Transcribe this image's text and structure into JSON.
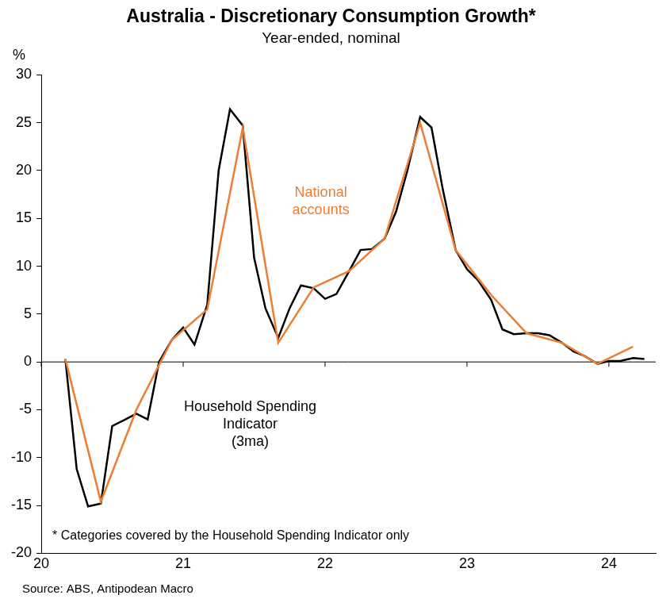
{
  "chart_data": {
    "type": "line",
    "title": "Australia - Discretionary Consumption Growth*",
    "subtitle": "Year-ended, nominal",
    "y_label": "%",
    "footnote": "* Categories covered by the Household Spending Indicator only",
    "source": "Source: ABS, Antipodean Macro",
    "xlim": [
      20,
      24.33
    ],
    "xticks": [
      20,
      21,
      22,
      23,
      24
    ],
    "ylim": [
      -20,
      30
    ],
    "yticks": [
      -20,
      -15,
      -10,
      -5,
      0,
      5,
      10,
      15,
      20,
      25,
      30
    ],
    "grid": false,
    "series": [
      {
        "name": "National accounts",
        "color": "#ED7D31",
        "x": [
          20.17,
          20.42,
          20.67,
          20.92,
          21.17,
          21.42,
          21.67,
          21.92,
          22.17,
          22.42,
          22.67,
          22.92,
          23.17,
          23.42,
          23.67,
          23.92,
          24.17
        ],
        "values": [
          0.3,
          -14.6,
          -5.0,
          2.3,
          5.5,
          24.5,
          2.0,
          7.8,
          9.5,
          12.9,
          25.0,
          11.7,
          7.0,
          3.0,
          2.0,
          -0.2,
          1.6
        ]
      },
      {
        "name": "Household Spending Indicator (3ma)",
        "color": "#000000",
        "x": [
          20.17,
          20.25,
          20.33,
          20.42,
          20.5,
          20.58,
          20.67,
          20.75,
          20.83,
          20.92,
          21,
          21.08,
          21.17,
          21.25,
          21.33,
          21.42,
          21.5,
          21.58,
          21.67,
          21.75,
          21.83,
          21.92,
          22,
          22.08,
          22.17,
          22.25,
          22.33,
          22.42,
          22.5,
          22.58,
          22.67,
          22.75,
          22.83,
          22.92,
          23,
          23.08,
          23.17,
          23.25,
          23.33,
          23.42,
          23.5,
          23.58,
          23.67,
          23.75,
          23.83,
          23.92,
          24,
          24.08,
          24.17,
          24.25
        ],
        "values": [
          0.3,
          -11.2,
          -15.1,
          -14.8,
          -6.7,
          -6.1,
          -5.4,
          -6.0,
          0,
          2.3,
          3.6,
          1.8,
          6,
          20,
          26.4,
          24.7,
          10.9,
          5.6,
          2.5,
          5.6,
          8,
          7.7,
          6.6,
          7.1,
          9.5,
          11.7,
          11.8,
          12.9,
          15.7,
          20,
          25.6,
          24.5,
          18,
          11.7,
          9.7,
          8.5,
          6.5,
          3.4,
          2.9,
          3.0,
          3.0,
          2.8,
          2.0,
          1.1,
          0.6,
          -0.2,
          0.1,
          0.1,
          0.4,
          0.3
        ]
      }
    ]
  }
}
